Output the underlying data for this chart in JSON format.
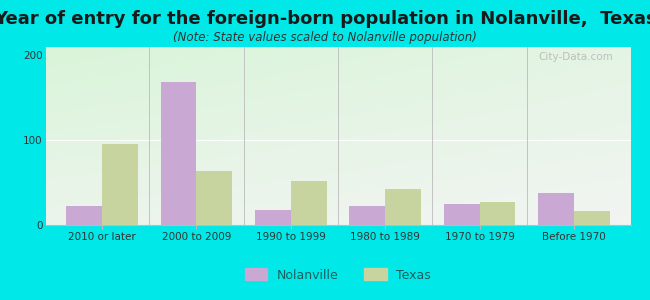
{
  "title": "Year of entry for the foreign-born population in Nolanville,  Texas",
  "subtitle": "(Note: State values scaled to Nolanville population)",
  "categories": [
    "2010 or later",
    "2000 to 2009",
    "1990 to 1999",
    "1980 to 1989",
    "1970 to 1979",
    "Before 1970"
  ],
  "nolanville_values": [
    22,
    168,
    18,
    22,
    25,
    38
  ],
  "texas_values": [
    95,
    63,
    52,
    42,
    27,
    17
  ],
  "nolanville_color": "#c9a8d4",
  "texas_color": "#c8d4a0",
  "background_color": "#00e8e8",
  "ylim": [
    0,
    210
  ],
  "yticks": [
    0,
    100,
    200
  ],
  "bar_width": 0.38,
  "title_fontsize": 13,
  "subtitle_fontsize": 8.5,
  "tick_fontsize": 7.5,
  "legend_fontsize": 9,
  "watermark": "City-Data.com"
}
